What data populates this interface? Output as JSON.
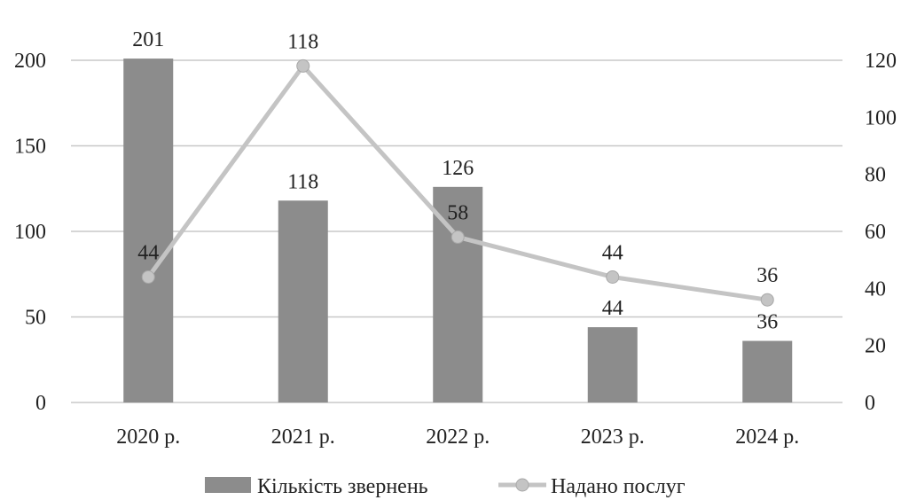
{
  "chart_data": {
    "type": "bar+line",
    "categories": [
      "2020 р.",
      "2021 р.",
      "2022 р.",
      "2023 р.",
      "2024 р."
    ],
    "series": [
      {
        "name": "Кількість звернень",
        "type": "bar",
        "axis": "left",
        "values": [
          201,
          118,
          126,
          44,
          36
        ],
        "labels": [
          "201",
          "118",
          "126",
          "44",
          "36"
        ],
        "color": "#8c8c8c"
      },
      {
        "name": "Надано послуг",
        "type": "line",
        "axis": "right",
        "values": [
          44,
          118,
          58,
          44,
          36
        ],
        "labels": [
          "44",
          "118",
          "58",
          "44",
          "36"
        ],
        "color": "#c4c4c4"
      }
    ],
    "y_left": {
      "min": 0,
      "max": 200,
      "ticks": [
        "0",
        "50",
        "100",
        "150",
        "200"
      ]
    },
    "y_right": {
      "min": 0,
      "max": 120,
      "ticks": [
        "0",
        "20",
        "40",
        "60",
        "80",
        "100",
        "120"
      ]
    },
    "grid": true,
    "legend": "bottom-center"
  }
}
